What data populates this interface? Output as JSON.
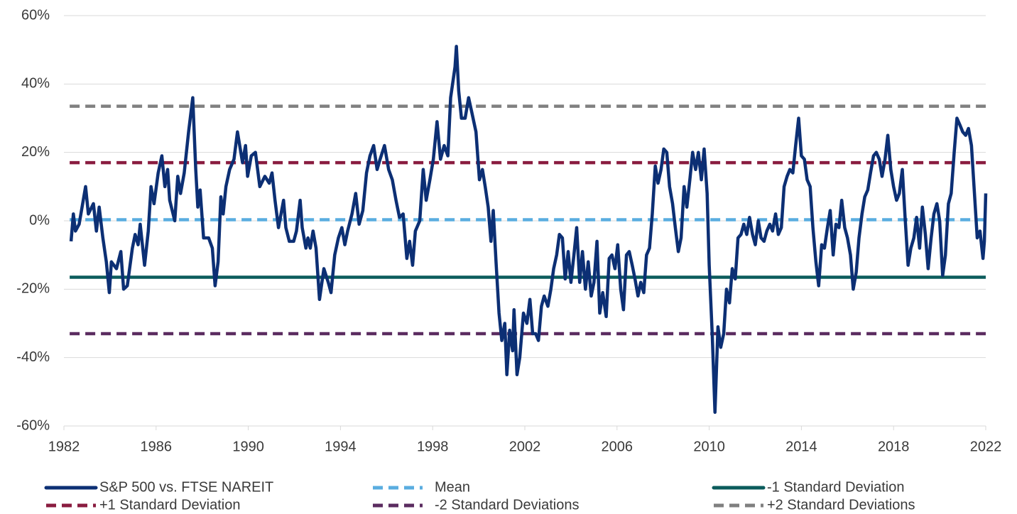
{
  "chart_data": {
    "type": "line",
    "xlim": [
      1982,
      2022
    ],
    "xticks": [
      1982,
      1986,
      1990,
      1994,
      1998,
      2002,
      2006,
      2010,
      2014,
      2018,
      2022
    ],
    "ylim": [
      -60,
      60
    ],
    "yticks": [
      {
        "value": -60,
        "label": "-60%"
      },
      {
        "value": -40,
        "label": "-40%"
      },
      {
        "value": -20,
        "label": "-20%"
      },
      {
        "value": 0,
        "label": "0%"
      },
      {
        "value": 20,
        "label": "20%"
      },
      {
        "value": 40,
        "label": "40%"
      },
      {
        "value": 60,
        "label": "60%"
      }
    ],
    "grid": true,
    "legend": "bottom",
    "series": [
      {
        "name": "S&P 500 vs. FTSE NAREIT",
        "color": "#0c2f74",
        "line_style": "solid",
        "x": [
          1982.31,
          1982.41,
          1982.5,
          1982.66,
          1982.94,
          1983.06,
          1983.28,
          1983.41,
          1983.53,
          1983.69,
          1983.84,
          1983.97,
          1984.06,
          1984.28,
          1984.47,
          1984.59,
          1984.75,
          1984.97,
          1985.09,
          1985.22,
          1985.31,
          1985.5,
          1985.66,
          1985.78,
          1985.91,
          1986.09,
          1986.25,
          1986.38,
          1986.5,
          1986.59,
          1986.81,
          1986.94,
          1987.06,
          1987.22,
          1987.41,
          1987.59,
          1987.72,
          1987.81,
          1987.91,
          1988.06,
          1988.28,
          1988.44,
          1988.56,
          1988.69,
          1988.81,
          1988.91,
          1989.03,
          1989.19,
          1989.38,
          1989.53,
          1989.75,
          1989.88,
          1989.97,
          1990.13,
          1990.31,
          1990.5,
          1990.72,
          1990.91,
          1991.03,
          1991.16,
          1991.31,
          1991.53,
          1991.63,
          1991.78,
          1991.97,
          1992.09,
          1992.25,
          1992.34,
          1992.5,
          1992.59,
          1992.69,
          1992.81,
          1992.94,
          1993.09,
          1993.28,
          1993.47,
          1993.59,
          1993.75,
          1993.91,
          1994.06,
          1994.19,
          1994.31,
          1994.5,
          1994.66,
          1994.81,
          1994.97,
          1995.13,
          1995.28,
          1995.44,
          1995.59,
          1995.72,
          1995.91,
          1996.09,
          1996.25,
          1996.41,
          1996.56,
          1996.72,
          1996.88,
          1997,
          1997.13,
          1997.25,
          1997.44,
          1997.59,
          1997.72,
          1997.88,
          1998.03,
          1998.19,
          1998.34,
          1998.5,
          1998.66,
          1998.78,
          1998.97,
          1999.03,
          1999.13,
          1999.25,
          1999.41,
          1999.56,
          1999.69,
          1999.88,
          2000.03,
          2000.16,
          2000.28,
          2000.41,
          2000.53,
          2000.63,
          2000.75,
          2000.88,
          2001,
          2001.13,
          2001.22,
          2001.34,
          2001.47,
          2001.53,
          2001.66,
          2001.78,
          2001.94,
          2002.09,
          2002.22,
          2002.34,
          2002.47,
          2002.59,
          2002.72,
          2002.84,
          2003,
          2003.13,
          2003.25,
          2003.38,
          2003.5,
          2003.63,
          2003.75,
          2003.88,
          2004,
          2004.13,
          2004.25,
          2004.38,
          2004.5,
          2004.63,
          2004.75,
          2004.88,
          2005,
          2005.13,
          2005.25,
          2005.38,
          2005.53,
          2005.66,
          2005.78,
          2005.91,
          2006.03,
          2006.16,
          2006.28,
          2006.41,
          2006.53,
          2006.66,
          2006.78,
          2006.91,
          2007.03,
          2007.16,
          2007.28,
          2007.41,
          2007.53,
          2007.66,
          2007.78,
          2007.91,
          2008.03,
          2008.16,
          2008.28,
          2008.41,
          2008.53,
          2008.66,
          2008.78,
          2008.91,
          2009.03,
          2009.16,
          2009.28,
          2009.41,
          2009.53,
          2009.66,
          2009.78,
          2009.91,
          2010,
          2010.13,
          2010.25,
          2010.38,
          2010.5,
          2010.63,
          2010.75,
          2010.88,
          2011,
          2011.13,
          2011.25,
          2011.38,
          2011.5,
          2011.63,
          2011.75,
          2011.88,
          2012,
          2012.13,
          2012.25,
          2012.38,
          2012.5,
          2012.63,
          2012.75,
          2012.88,
          2013,
          2013.13,
          2013.25,
          2013.38,
          2013.5,
          2013.63,
          2013.75,
          2013.88,
          2014,
          2014.13,
          2014.25,
          2014.38,
          2014.5,
          2014.63,
          2014.75,
          2014.88,
          2015,
          2015.13,
          2015.25,
          2015.38,
          2015.5,
          2015.63,
          2015.75,
          2015.88,
          2016,
          2016.13,
          2016.25,
          2016.38,
          2016.5,
          2016.63,
          2016.75,
          2016.88,
          2017,
          2017.13,
          2017.25,
          2017.38,
          2017.5,
          2017.63,
          2017.75,
          2017.88,
          2018,
          2018.13,
          2018.25,
          2018.38,
          2018.5,
          2018.63,
          2018.75,
          2018.88,
          2019,
          2019.13,
          2019.25,
          2019.38,
          2019.5,
          2019.63,
          2019.75,
          2019.88,
          2020,
          2020.13,
          2020.25,
          2020.38,
          2020.5,
          2020.63,
          2020.75,
          2020.88,
          2021,
          2021.13,
          2021.25,
          2021.38,
          2021.5,
          2021.63,
          2021.75,
          2021.88,
          2021.94,
          2022
        ],
        "values": [
          -6,
          2,
          -3,
          -1,
          10,
          2,
          5,
          -3,
          4,
          -5,
          -12,
          -21,
          -12,
          -14,
          -9,
          -20,
          -19,
          -8,
          -4,
          -7,
          -1,
          -13,
          -3,
          10,
          5,
          14,
          19,
          10,
          15,
          6,
          0,
          13,
          8,
          14,
          26,
          36,
          15,
          4,
          9,
          -5,
          -5,
          -8,
          -19,
          -12,
          7,
          2,
          10,
          15,
          18,
          26,
          17,
          22,
          13,
          19,
          20,
          10,
          13,
          11,
          14,
          6,
          -2,
          6,
          -2,
          -6,
          -6,
          -3,
          6,
          -2,
          -8,
          -5,
          -8,
          -3,
          -8,
          -23,
          -14,
          -18,
          -21,
          -10,
          -5,
          -2,
          -7,
          -3,
          2,
          8,
          -1,
          3,
          14,
          19,
          22,
          15,
          18,
          22,
          15,
          12,
          6,
          1,
          2,
          -11,
          -6,
          -13,
          -3,
          0,
          15,
          6,
          12,
          18,
          29,
          18,
          22,
          19,
          36,
          45,
          51,
          38,
          30,
          30,
          36,
          32,
          26,
          12,
          15,
          10,
          4,
          -6,
          3,
          -12,
          -27,
          -35,
          -30,
          -45,
          -32,
          -38,
          -26,
          -45,
          -40,
          -27,
          -30,
          -23,
          -33,
          -33,
          -35,
          -25,
          -22,
          -25,
          -20,
          -14,
          -10,
          -4,
          -5,
          -17,
          -9,
          -18,
          -10,
          -2,
          -18,
          -9,
          -20,
          -12,
          -22,
          -18,
          -6,
          -27,
          -21,
          -28,
          -11,
          -10,
          -14,
          -7,
          -20,
          -26,
          -10,
          -9,
          -13,
          -17,
          -22,
          -18,
          -21,
          -10,
          -8,
          2,
          16,
          11,
          15,
          21,
          20,
          10,
          5,
          -2,
          -9,
          -5,
          10,
          4,
          12,
          20,
          15,
          20,
          12,
          21,
          8,
          -13,
          -33,
          -56,
          -31,
          -37,
          -33,
          -20,
          -24,
          -14,
          -17,
          -5,
          -4,
          -1,
          -4,
          1,
          -4,
          -7,
          0,
          -5,
          -6,
          -3,
          -1,
          -3,
          2,
          -4,
          -2,
          10,
          13,
          15,
          14,
          22,
          30,
          19,
          18,
          12,
          10,
          -2,
          -12,
          -19,
          -7,
          -8,
          -2,
          3,
          -10,
          -1,
          -2,
          6,
          -2,
          -5,
          -10,
          -20,
          -15,
          -5,
          2,
          7,
          9,
          14,
          19,
          20,
          18,
          13,
          18,
          25,
          15,
          10,
          6,
          8,
          15,
          1,
          -13,
          -8,
          -5,
          1,
          -8,
          4,
          -4,
          -14,
          -5,
          2,
          5,
          0,
          -16,
          -10,
          5,
          8,
          20,
          30,
          28,
          26,
          25,
          27,
          22,
          9,
          -5,
          -3,
          -11,
          -6,
          8
        ]
      },
      {
        "name": "Mean",
        "color": "#5aade0",
        "line_style": "dashed",
        "x": [
          1982.25,
          2022
        ],
        "values": [
          0.3,
          0.3
        ]
      },
      {
        "name": "-1 Standard Deviation",
        "color": "#0b5c5c",
        "line_style": "solid",
        "x": [
          1982.25,
          2022
        ],
        "values": [
          -16.5,
          -16.5
        ]
      },
      {
        "name": "+1 Standard Deviation",
        "color": "#8a1c40",
        "line_style": "dashed",
        "x": [
          1982.25,
          2022
        ],
        "values": [
          17,
          17
        ]
      },
      {
        "name": "-2 Standard Deviations",
        "color": "#5b2c60",
        "line_style": "dashed",
        "x": [
          1982.25,
          2022
        ],
        "values": [
          -33,
          -33
        ]
      },
      {
        "name": "+2 Standard Deviations",
        "color": "#808080",
        "line_style": "dashed",
        "x": [
          1982.25,
          2022
        ],
        "values": [
          33.5,
          33.5
        ]
      }
    ]
  }
}
